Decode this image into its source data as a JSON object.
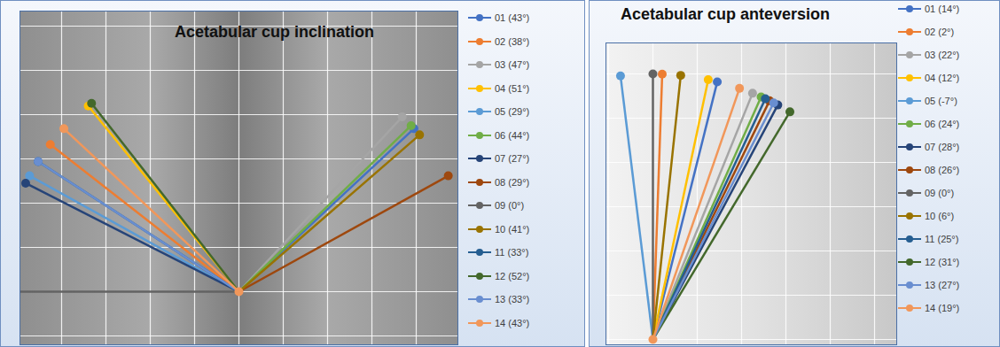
{
  "chart_data": [
    {
      "type": "radial_lines",
      "title": "Acetabular cup inclination",
      "grid": true,
      "tick_labels": false,
      "legend": "right",
      "series": [
        {
          "name": "01 (43°)",
          "color": "#4472c4",
          "values": [
            43
          ]
        },
        {
          "name": "02 (38°)",
          "color": "#ed7d31",
          "values": [
            38
          ]
        },
        {
          "name": "03 (47°)",
          "color": "#a5a5a5",
          "values": [
            47
          ]
        },
        {
          "name": "04 (51°)",
          "color": "#ffc000",
          "values": [
            51
          ]
        },
        {
          "name": "05 (29°)",
          "color": "#5b9bd5",
          "values": [
            29
          ]
        },
        {
          "name": "06 (44°)",
          "color": "#70ad47",
          "values": [
            44
          ]
        },
        {
          "name": "07 (27°)",
          "color": "#264478",
          "values": [
            27
          ]
        },
        {
          "name": "08 (29°)",
          "color": "#9e480e",
          "values": [
            29
          ]
        },
        {
          "name": "09 (0°)",
          "color": "#636363",
          "values": [
            0
          ]
        },
        {
          "name": "10 (41°)",
          "color": "#997300",
          "values": [
            41
          ]
        },
        {
          "name": "11 (33°)",
          "color": "#255e91",
          "values": [
            33
          ]
        },
        {
          "name": "12 (52°)",
          "color": "#43682b",
          "values": [
            52
          ]
        },
        {
          "name": "13 (33°)",
          "color": "#698ed0",
          "values": [
            33
          ]
        },
        {
          "name": "14 (43°)",
          "color": "#f1975a",
          "values": [
            43
          ]
        }
      ]
    },
    {
      "type": "radial_lines",
      "title": "Acetabular cup anteversion",
      "grid": true,
      "tick_labels": false,
      "legend": "right",
      "series": [
        {
          "name": "01 (14°)",
          "color": "#4472c4",
          "values": [
            14
          ]
        },
        {
          "name": "02 (2°)",
          "color": "#ed7d31",
          "values": [
            2
          ]
        },
        {
          "name": "03 (22°)",
          "color": "#a5a5a5",
          "values": [
            22
          ]
        },
        {
          "name": "04 (12°)",
          "color": "#ffc000",
          "values": [
            12
          ]
        },
        {
          "name": "05 (-7°)",
          "color": "#5b9bd5",
          "values": [
            -7
          ]
        },
        {
          "name": "06 (24°)",
          "color": "#70ad47",
          "values": [
            24
          ]
        },
        {
          "name": "07 (28°)",
          "color": "#264478",
          "values": [
            28
          ]
        },
        {
          "name": "08 (26°)",
          "color": "#9e480e",
          "values": [
            26
          ]
        },
        {
          "name": "09 (0°)",
          "color": "#636363",
          "values": [
            0
          ]
        },
        {
          "name": "10 (6°)",
          "color": "#997300",
          "values": [
            6
          ]
        },
        {
          "name": "11 (25°)",
          "color": "#255e91",
          "values": [
            25
          ]
        },
        {
          "name": "12 (31°)",
          "color": "#43682b",
          "values": [
            31
          ]
        },
        {
          "name": "13 (27°)",
          "color": "#698ed0",
          "values": [
            27
          ]
        },
        {
          "name": "14 (19°)",
          "color": "#f1975a",
          "values": [
            19
          ]
        }
      ]
    }
  ]
}
